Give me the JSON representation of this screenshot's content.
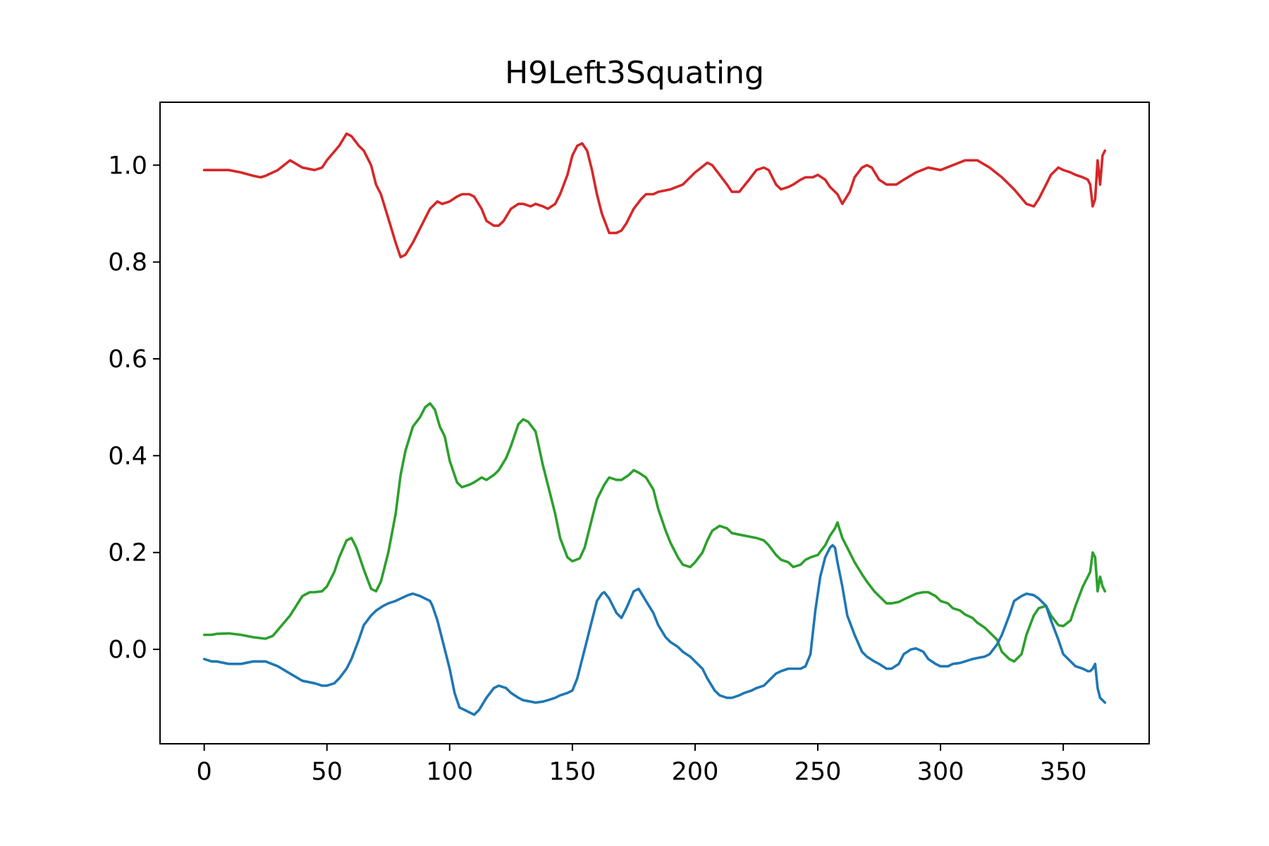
{
  "chart_data": {
    "type": "line",
    "title": "H9Left3Squating",
    "xlabel": "",
    "ylabel": "",
    "xlim": [
      -18,
      385
    ],
    "ylim": [
      -0.195,
      1.13
    ],
    "xticks": [
      0,
      50,
      100,
      150,
      200,
      250,
      300,
      350
    ],
    "yticks": [
      0.0,
      0.2,
      0.4,
      0.6,
      0.8,
      1.0
    ],
    "grid": false,
    "legend": "none",
    "series": [
      {
        "color": "#d62728",
        "x": [
          0,
          5,
          10,
          15,
          20,
          23,
          25,
          30,
          35,
          40,
          45,
          48,
          50,
          55,
          58,
          60,
          63,
          65,
          68,
          70,
          72,
          75,
          78,
          80,
          82,
          85,
          88,
          90,
          92,
          95,
          97,
          100,
          103,
          105,
          108,
          110,
          113,
          115,
          118,
          120,
          122,
          125,
          128,
          130,
          133,
          135,
          138,
          140,
          143,
          145,
          148,
          150,
          152,
          154,
          156,
          158,
          160,
          162,
          165,
          168,
          170,
          172,
          175,
          178,
          180,
          183,
          185,
          190,
          195,
          200,
          205,
          207,
          210,
          213,
          215,
          218,
          222,
          225,
          228,
          230,
          233,
          235,
          238,
          240,
          243,
          245,
          248,
          250,
          253,
          255,
          258,
          260,
          263,
          265,
          268,
          270,
          272,
          275,
          278,
          282,
          285,
          290,
          295,
          300,
          305,
          310,
          315,
          320,
          325,
          330,
          335,
          338,
          340,
          343,
          345,
          348,
          350,
          353,
          355,
          358,
          360,
          361,
          362,
          363,
          364,
          365,
          366,
          367
        ],
        "y": [
          0.99,
          0.99,
          0.99,
          0.985,
          0.978,
          0.975,
          0.978,
          0.99,
          1.01,
          0.995,
          0.99,
          0.995,
          1.01,
          1.04,
          1.065,
          1.06,
          1.04,
          1.03,
          1.0,
          0.96,
          0.94,
          0.89,
          0.84,
          0.81,
          0.815,
          0.84,
          0.87,
          0.89,
          0.91,
          0.925,
          0.92,
          0.925,
          0.935,
          0.94,
          0.94,
          0.935,
          0.91,
          0.885,
          0.875,
          0.875,
          0.885,
          0.91,
          0.92,
          0.92,
          0.915,
          0.92,
          0.915,
          0.91,
          0.92,
          0.94,
          0.98,
          1.02,
          1.04,
          1.045,
          1.03,
          0.99,
          0.94,
          0.9,
          0.86,
          0.86,
          0.865,
          0.88,
          0.91,
          0.93,
          0.94,
          0.94,
          0.945,
          0.95,
          0.96,
          0.985,
          1.005,
          1.0,
          0.98,
          0.96,
          0.945,
          0.945,
          0.97,
          0.99,
          0.995,
          0.99,
          0.96,
          0.95,
          0.955,
          0.96,
          0.97,
          0.975,
          0.975,
          0.98,
          0.97,
          0.955,
          0.94,
          0.92,
          0.945,
          0.975,
          0.995,
          1.0,
          0.995,
          0.97,
          0.96,
          0.96,
          0.97,
          0.985,
          0.995,
          0.99,
          1.0,
          1.01,
          1.01,
          0.995,
          0.975,
          0.95,
          0.92,
          0.915,
          0.93,
          0.96,
          0.98,
          0.995,
          0.99,
          0.985,
          0.98,
          0.975,
          0.97,
          0.96,
          0.915,
          0.93,
          1.01,
          0.96,
          1.02,
          1.03
        ]
      },
      {
        "color": "#2ca02c",
        "x": [
          0,
          3,
          5,
          10,
          15,
          20,
          25,
          28,
          30,
          35,
          40,
          43,
          45,
          48,
          50,
          53,
          55,
          58,
          60,
          62,
          65,
          68,
          70,
          72,
          75,
          78,
          80,
          82,
          85,
          88,
          90,
          92,
          94,
          96,
          98,
          100,
          103,
          105,
          108,
          110,
          113,
          115,
          118,
          120,
          123,
          125,
          128,
          130,
          132,
          135,
          138,
          140,
          143,
          145,
          148,
          150,
          153,
          155,
          158,
          160,
          163,
          165,
          168,
          170,
          173,
          175,
          177,
          180,
          183,
          185,
          188,
          190,
          193,
          195,
          198,
          200,
          203,
          205,
          207,
          210,
          213,
          215,
          220,
          225,
          228,
          230,
          233,
          235,
          238,
          240,
          243,
          245,
          247,
          250,
          253,
          255,
          257,
          258,
          260,
          263,
          265,
          268,
          270,
          273,
          275,
          278,
          280,
          283,
          285,
          288,
          290,
          293,
          295,
          298,
          300,
          303,
          305,
          308,
          310,
          313,
          315,
          318,
          320,
          323,
          325,
          328,
          330,
          333,
          335,
          338,
          340,
          343,
          345,
          348,
          350,
          353,
          355,
          358,
          360,
          361,
          362,
          363,
          364,
          365,
          366,
          367
        ],
        "y": [
          0.03,
          0.03,
          0.032,
          0.033,
          0.03,
          0.025,
          0.022,
          0.028,
          0.04,
          0.07,
          0.11,
          0.118,
          0.118,
          0.12,
          0.13,
          0.16,
          0.19,
          0.225,
          0.23,
          0.21,
          0.165,
          0.125,
          0.12,
          0.14,
          0.2,
          0.28,
          0.36,
          0.41,
          0.46,
          0.48,
          0.5,
          0.508,
          0.495,
          0.46,
          0.44,
          0.39,
          0.345,
          0.335,
          0.34,
          0.345,
          0.355,
          0.35,
          0.36,
          0.37,
          0.395,
          0.42,
          0.465,
          0.475,
          0.47,
          0.45,
          0.38,
          0.34,
          0.28,
          0.23,
          0.19,
          0.182,
          0.188,
          0.21,
          0.27,
          0.31,
          0.34,
          0.355,
          0.35,
          0.35,
          0.36,
          0.37,
          0.365,
          0.355,
          0.33,
          0.29,
          0.245,
          0.22,
          0.19,
          0.175,
          0.17,
          0.18,
          0.2,
          0.225,
          0.245,
          0.255,
          0.25,
          0.24,
          0.235,
          0.23,
          0.225,
          0.215,
          0.195,
          0.185,
          0.18,
          0.17,
          0.175,
          0.185,
          0.19,
          0.195,
          0.215,
          0.235,
          0.25,
          0.262,
          0.23,
          0.2,
          0.18,
          0.155,
          0.14,
          0.12,
          0.11,
          0.095,
          0.095,
          0.098,
          0.103,
          0.11,
          0.115,
          0.118,
          0.118,
          0.11,
          0.1,
          0.095,
          0.085,
          0.08,
          0.072,
          0.065,
          0.055,
          0.045,
          0.035,
          0.02,
          -0.005,
          -0.02,
          -0.025,
          -0.01,
          0.03,
          0.07,
          0.085,
          0.09,
          0.07,
          0.05,
          0.048,
          0.06,
          0.09,
          0.13,
          0.15,
          0.16,
          0.2,
          0.19,
          0.12,
          0.15,
          0.13,
          0.12
        ]
      },
      {
        "color": "#1f77b4",
        "x": [
          0,
          3,
          5,
          10,
          15,
          20,
          25,
          30,
          35,
          40,
          45,
          48,
          50,
          53,
          55,
          58,
          60,
          63,
          65,
          68,
          70,
          73,
          75,
          78,
          80,
          83,
          85,
          88,
          90,
          92,
          93,
          95,
          97,
          100,
          102,
          104,
          106,
          108,
          110,
          112,
          115,
          118,
          120,
          123,
          125,
          128,
          130,
          133,
          135,
          138,
          140,
          143,
          145,
          148,
          150,
          152,
          154,
          156,
          158,
          160,
          162,
          163,
          165,
          168,
          170,
          172,
          175,
          177,
          180,
          183,
          185,
          188,
          190,
          193,
          195,
          198,
          200,
          203,
          205,
          208,
          210,
          213,
          215,
          218,
          220,
          223,
          225,
          228,
          230,
          233,
          235,
          238,
          240,
          243,
          245,
          247,
          249,
          251,
          253,
          255,
          256,
          257,
          258,
          260,
          262,
          265,
          268,
          270,
          273,
          275,
          278,
          280,
          283,
          285,
          288,
          290,
          293,
          295,
          298,
          300,
          303,
          305,
          308,
          310,
          313,
          315,
          318,
          320,
          323,
          325,
          328,
          330,
          333,
          335,
          338,
          340,
          343,
          345,
          348,
          350,
          353,
          355,
          358,
          360,
          361,
          362,
          363,
          364,
          365,
          366,
          367
        ],
        "y": [
          -0.02,
          -0.025,
          -0.025,
          -0.03,
          -0.03,
          -0.025,
          -0.025,
          -0.035,
          -0.05,
          -0.065,
          -0.07,
          -0.075,
          -0.075,
          -0.07,
          -0.06,
          -0.04,
          -0.02,
          0.02,
          0.05,
          0.07,
          0.08,
          0.09,
          0.095,
          0.1,
          0.105,
          0.112,
          0.115,
          0.11,
          0.105,
          0.1,
          0.09,
          0.06,
          0.02,
          -0.04,
          -0.09,
          -0.12,
          -0.125,
          -0.13,
          -0.135,
          -0.125,
          -0.1,
          -0.08,
          -0.075,
          -0.08,
          -0.09,
          -0.1,
          -0.105,
          -0.108,
          -0.11,
          -0.108,
          -0.105,
          -0.1,
          -0.095,
          -0.09,
          -0.085,
          -0.06,
          -0.02,
          0.02,
          0.06,
          0.1,
          0.115,
          0.118,
          0.105,
          0.075,
          0.065,
          0.085,
          0.12,
          0.125,
          0.1,
          0.075,
          0.05,
          0.025,
          0.015,
          0.005,
          -0.005,
          -0.015,
          -0.025,
          -0.04,
          -0.06,
          -0.085,
          -0.095,
          -0.1,
          -0.1,
          -0.095,
          -0.09,
          -0.085,
          -0.08,
          -0.075,
          -0.065,
          -0.05,
          -0.045,
          -0.04,
          -0.04,
          -0.04,
          -0.035,
          -0.01,
          0.08,
          0.15,
          0.19,
          0.21,
          0.215,
          0.21,
          0.18,
          0.13,
          0.07,
          0.03,
          -0.005,
          -0.015,
          -0.025,
          -0.03,
          -0.04,
          -0.04,
          -0.03,
          -0.01,
          0.0,
          0.002,
          -0.005,
          -0.02,
          -0.03,
          -0.035,
          -0.035,
          -0.03,
          -0.028,
          -0.025,
          -0.02,
          -0.018,
          -0.015,
          -0.01,
          0.01,
          0.03,
          0.07,
          0.1,
          0.11,
          0.115,
          0.112,
          0.105,
          0.09,
          0.06,
          0.02,
          -0.01,
          -0.025,
          -0.035,
          -0.04,
          -0.045,
          -0.045,
          -0.04,
          -0.03,
          -0.08,
          -0.1,
          -0.105,
          -0.11
        ]
      }
    ]
  }
}
